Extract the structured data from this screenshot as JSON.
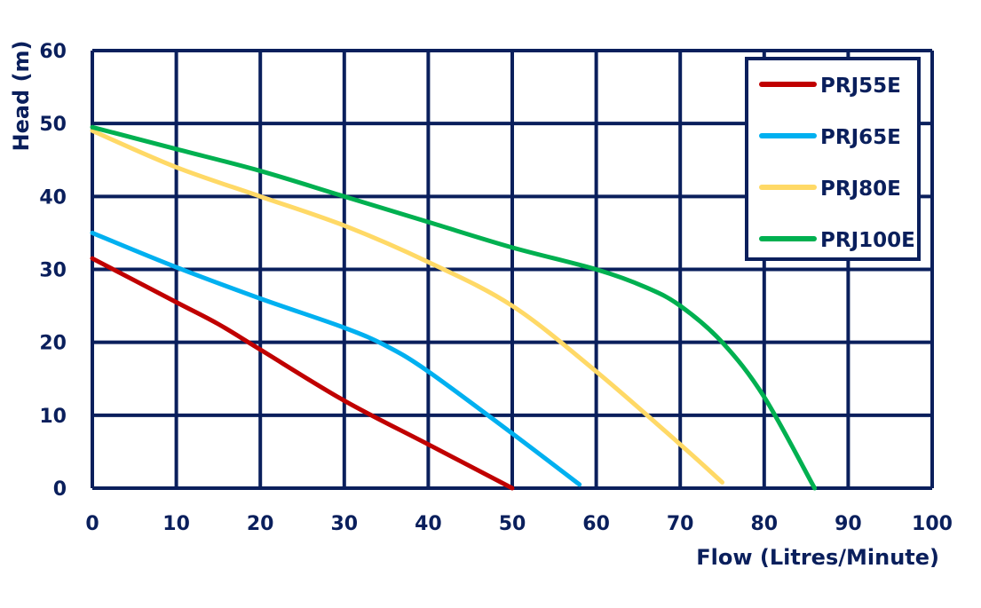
{
  "chart_data": {
    "type": "line",
    "title": "",
    "xlabel": "Flow (Litres/Minute)",
    "ylabel": "Head (m)",
    "xlim": [
      0,
      100
    ],
    "ylim": [
      0,
      60
    ],
    "xticks": [
      "0",
      "10",
      "20",
      "30",
      "40",
      "50",
      "60",
      "70",
      "80",
      "90",
      "100"
    ],
    "yticks": [
      "0",
      "10",
      "20",
      "30",
      "40",
      "50",
      "60"
    ],
    "grid": true,
    "legend_position": "top-right",
    "axis_color": "#0a1f5c",
    "series": [
      {
        "name": "PRJ55E",
        "color": "#c00000",
        "x": [
          0,
          10,
          15,
          20,
          30,
          40,
          50
        ],
        "y": [
          31.5,
          25.5,
          22.5,
          19,
          12,
          6,
          0
        ]
      },
      {
        "name": "PRJ65E",
        "color": "#00b0f0",
        "x": [
          0,
          10,
          20,
          30,
          35,
          40,
          50,
          58
        ],
        "y": [
          35,
          30.3,
          26,
          22,
          19.5,
          16,
          7.5,
          0.5
        ]
      },
      {
        "name": "PRJ80E",
        "color": "#ffd966",
        "x": [
          0,
          10,
          20,
          30,
          40,
          50,
          60,
          70,
          75
        ],
        "y": [
          49,
          44,
          40,
          36,
          31,
          25,
          16,
          6,
          0.8
        ]
      },
      {
        "name": "PRJ100E",
        "color": "#00b050",
        "x": [
          0,
          10,
          20,
          30,
          40,
          50,
          60,
          66,
          70,
          75,
          80,
          86
        ],
        "y": [
          49.5,
          46.5,
          43.5,
          40,
          36.5,
          33,
          30,
          27.5,
          25,
          20,
          12.5,
          0
        ]
      }
    ]
  }
}
